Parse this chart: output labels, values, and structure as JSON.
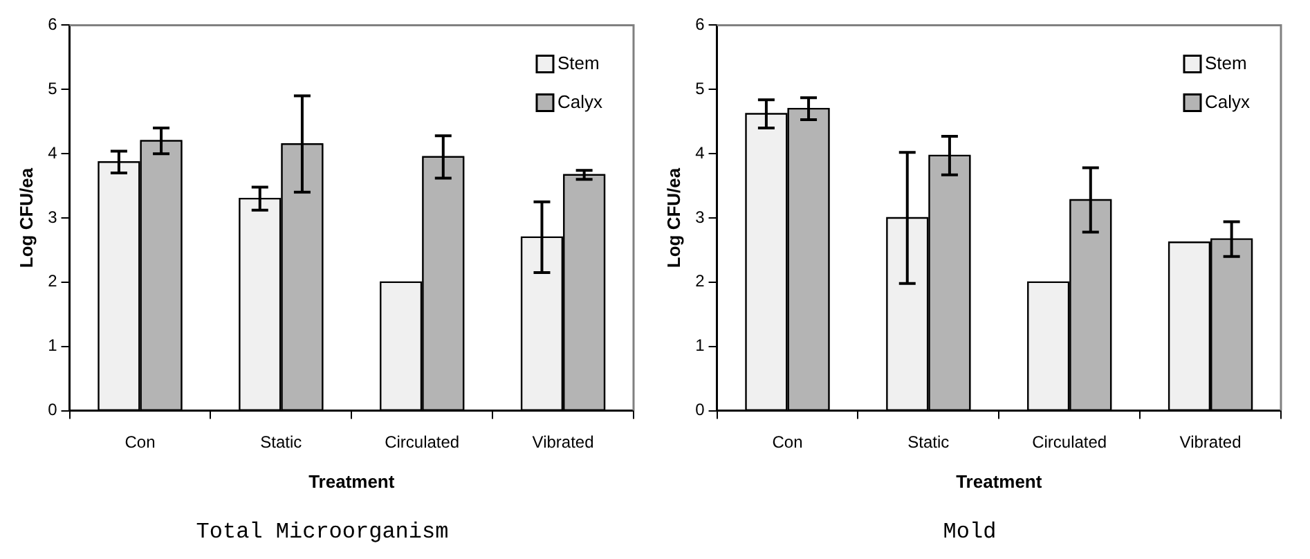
{
  "chart_data": [
    {
      "type": "bar",
      "title": "Total Microorganism",
      "xlabel": "Treatment",
      "ylabel": "Log CFU/ea",
      "categories": [
        "Con",
        "Static",
        "Circulated",
        "Vibrated"
      ],
      "series": [
        {
          "name": "Stem",
          "color": "#f0f0f0",
          "values": [
            3.87,
            3.3,
            2.0,
            2.7
          ],
          "errors": [
            0.17,
            0.18,
            null,
            0.55
          ]
        },
        {
          "name": "Calyx",
          "color": "#b4b4b4",
          "values": [
            4.2,
            4.15,
            3.95,
            3.67
          ],
          "errors": [
            0.2,
            0.75,
            0.33,
            0.07
          ]
        }
      ],
      "ylim": [
        0,
        6
      ],
      "yticks": [
        0,
        1,
        2,
        3,
        4,
        5,
        6
      ],
      "grid": false,
      "legend": "top right"
    },
    {
      "type": "bar",
      "title": "Mold",
      "xlabel": "Treatment",
      "ylabel": "Log CFU/ea",
      "categories": [
        "Con",
        "Static",
        "Circulated",
        "Vibrated"
      ],
      "series": [
        {
          "name": "Stem",
          "color": "#f0f0f0",
          "values": [
            4.62,
            3.0,
            2.0,
            2.62
          ],
          "errors": [
            0.22,
            1.02,
            null,
            null
          ]
        },
        {
          "name": "Calyx",
          "color": "#b4b4b4",
          "values": [
            4.7,
            3.97,
            3.28,
            2.67
          ],
          "errors": [
            0.17,
            0.3,
            0.5,
            0.27
          ]
        }
      ],
      "ylim": [
        0,
        6
      ],
      "yticks": [
        0,
        1,
        2,
        3,
        4,
        5,
        6
      ],
      "grid": false,
      "legend": "top right"
    }
  ]
}
